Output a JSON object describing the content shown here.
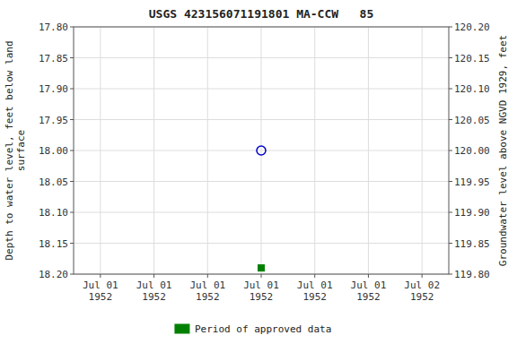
{
  "chart_data": {
    "type": "scatter",
    "title": "USGS 423156071191801 MA-CCW   85",
    "y_label": "Depth to water level, feet below land\nsurface",
    "y2_label": "Groundwater level above NGVD 1929, feet",
    "categories": [
      "Jul 01\n1952",
      "Jul 01\n1952",
      "Jul 01\n1952",
      "Jul 01\n1952",
      "Jul 01\n1952",
      "Jul 01\n1952",
      "Jul 02\n1952"
    ],
    "series": [
      {
        "color": "#0000cc",
        "marker": "circle-open",
        "line_style": "none",
        "values": [
          null,
          null,
          null,
          18.0,
          null,
          null,
          null
        ]
      },
      {
        "name": "Period of approved data",
        "color": "#008000",
        "marker": "square",
        "line_style": "none",
        "values": [
          null,
          null,
          null,
          18.19,
          null,
          null,
          null
        ]
      }
    ],
    "ylim": [
      18.2,
      17.8
    ],
    "yticks": [
      {
        "value": 17.8,
        "label": "17.80"
      },
      {
        "value": 17.85,
        "label": "17.85"
      },
      {
        "value": 17.9,
        "label": "17.90"
      },
      {
        "value": 17.95,
        "label": "17.95"
      },
      {
        "value": 18.0,
        "label": "18.00"
      },
      {
        "value": 18.05,
        "label": "18.05"
      },
      {
        "value": 18.1,
        "label": "18.10"
      },
      {
        "value": 18.15,
        "label": "18.15"
      },
      {
        "value": 18.2,
        "label": "18.20"
      }
    ],
    "y2lim": [
      119.8,
      120.2
    ],
    "y2ticks": [
      {
        "value": 119.8,
        "label": "119.80"
      },
      {
        "value": 119.85,
        "label": "119.85"
      },
      {
        "value": 119.9,
        "label": "119.90"
      },
      {
        "value": 119.95,
        "label": "119.95"
      },
      {
        "value": 120.0,
        "label": "120.00"
      },
      {
        "value": 120.05,
        "label": "120.05"
      },
      {
        "value": 120.1,
        "label": "120.10"
      },
      {
        "value": 120.15,
        "label": "120.15"
      },
      {
        "value": 120.2,
        "label": "120.20"
      }
    ],
    "grid": true,
    "legend": "bottom"
  }
}
